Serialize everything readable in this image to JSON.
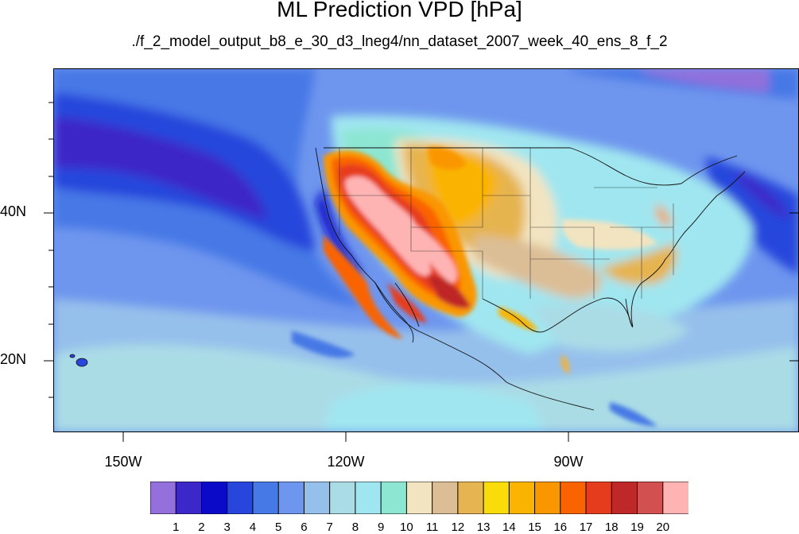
{
  "title": "ML Prediction VPD [hPa]",
  "subtitle": "./f_2_model_output_b8_e_30_d3_lneg4/nn_dataset_2007_week_40_ens_8_f_2",
  "lat_labels": [
    "40N",
    "20N"
  ],
  "lon_labels": [
    "150W",
    "120W",
    "90W"
  ],
  "colorbar": {
    "labels": [
      "1",
      "2",
      "3",
      "4",
      "5",
      "6",
      "7",
      "8",
      "9",
      "10",
      "11",
      "12",
      "13",
      "14",
      "15",
      "16",
      "17",
      "18",
      "19",
      "20"
    ],
    "colors": [
      "#9370db",
      "#3c28c8",
      "#0a0ac8",
      "#2846dc",
      "#4678e6",
      "#6e96ee",
      "#96c0ec",
      "#aadce6",
      "#a0e6f0",
      "#8ce6d2",
      "#f2e4c0",
      "#dcbe96",
      "#e6b450",
      "#fadc0a",
      "#fab400",
      "#fa9600",
      "#fa6400",
      "#e63c1e",
      "#be2828",
      "#d25050",
      "#ffb4b4"
    ]
  },
  "map": {
    "region": "North America and eastern North Pacific",
    "lon_range": [
      -160,
      -62
    ],
    "lat_range": [
      11,
      60
    ],
    "variable": "VPD",
    "units": "hPa",
    "field_pattern": "highest values (>17 hPa) over the US Southwest/Great Basin, California interior and northern Mexico; moderate 11-16 over Great Plains and Southeast; low values (2-5) over the North Pacific and coastal waters"
  }
}
